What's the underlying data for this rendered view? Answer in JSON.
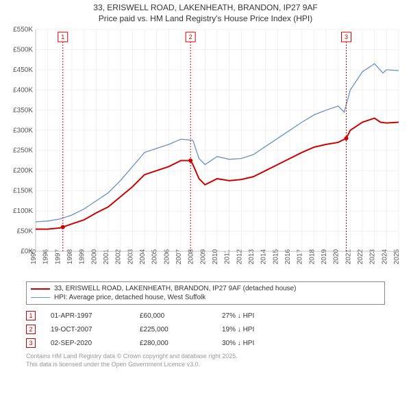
{
  "title": {
    "line1": "33, ERISWELL ROAD, LAKENHEATH, BRANDON, IP27 9AF",
    "line2": "Price paid vs. HM Land Registry's House Price Index (HPI)"
  },
  "chart": {
    "type": "line",
    "background_color": "#ffffff",
    "grid_color": "#f0f0f0",
    "axis_color": "#c0c0c0",
    "x": {
      "start_year": 1995,
      "end_year": 2025,
      "ticks": [
        1995,
        1996,
        1997,
        1998,
        1999,
        2000,
        2001,
        2002,
        2003,
        2004,
        2005,
        2006,
        2007,
        2008,
        2009,
        2010,
        2011,
        2012,
        2013,
        2014,
        2015,
        2016,
        2017,
        2018,
        2019,
        2020,
        2021,
        2022,
        2023,
        2024,
        2025
      ]
    },
    "y": {
      "min": 0,
      "max": 550,
      "step": 50,
      "unit_suffix": "K",
      "unit_prefix": "£",
      "ticks": [
        0,
        50,
        100,
        150,
        200,
        250,
        300,
        350,
        400,
        450,
        500,
        550
      ]
    },
    "series_red": {
      "label": "33, ERISWELL ROAD, LAKENHEATH, BRANDON, IP27 9AF (detached house)",
      "color": "#cc0000",
      "width": 2,
      "data": [
        [
          1995,
          55
        ],
        [
          1996,
          55
        ],
        [
          1997,
          58
        ],
        [
          1997.25,
          60
        ],
        [
          1998,
          68
        ],
        [
          1999,
          78
        ],
        [
          2000,
          95
        ],
        [
          2001,
          110
        ],
        [
          2002,
          135
        ],
        [
          2003,
          160
        ],
        [
          2004,
          190
        ],
        [
          2005,
          200
        ],
        [
          2006,
          210
        ],
        [
          2007,
          225
        ],
        [
          2007.8,
          225
        ],
        [
          2008,
          215
        ],
        [
          2008.5,
          180
        ],
        [
          2009,
          165
        ],
        [
          2010,
          180
        ],
        [
          2011,
          175
        ],
        [
          2012,
          178
        ],
        [
          2013,
          185
        ],
        [
          2014,
          200
        ],
        [
          2015,
          215
        ],
        [
          2016,
          230
        ],
        [
          2017,
          245
        ],
        [
          2018,
          258
        ],
        [
          2019,
          265
        ],
        [
          2020,
          270
        ],
        [
          2020.67,
          280
        ],
        [
          2021,
          300
        ],
        [
          2022,
          320
        ],
        [
          2023,
          330
        ],
        [
          2023.5,
          320
        ],
        [
          2024,
          318
        ],
        [
          2025,
          320
        ]
      ]
    },
    "series_blue": {
      "label": "HPI: Average price, detached house, West Suffolk",
      "color": "#6a8fc4",
      "width": 1.3,
      "data": [
        [
          1995,
          73
        ],
        [
          1996,
          75
        ],
        [
          1997,
          80
        ],
        [
          1998,
          90
        ],
        [
          1999,
          105
        ],
        [
          2000,
          125
        ],
        [
          2001,
          145
        ],
        [
          2002,
          175
        ],
        [
          2003,
          210
        ],
        [
          2004,
          245
        ],
        [
          2005,
          255
        ],
        [
          2006,
          265
        ],
        [
          2007,
          278
        ],
        [
          2008,
          275
        ],
        [
          2008.5,
          230
        ],
        [
          2009,
          215
        ],
        [
          2010,
          235
        ],
        [
          2011,
          228
        ],
        [
          2012,
          230
        ],
        [
          2013,
          240
        ],
        [
          2014,
          260
        ],
        [
          2015,
          280
        ],
        [
          2016,
          300
        ],
        [
          2017,
          320
        ],
        [
          2018,
          338
        ],
        [
          2019,
          350
        ],
        [
          2020,
          360
        ],
        [
          2020.5,
          345
        ],
        [
          2021,
          400
        ],
        [
          2022,
          445
        ],
        [
          2023,
          465
        ],
        [
          2023.7,
          442
        ],
        [
          2024,
          450
        ],
        [
          2025,
          448
        ]
      ]
    },
    "markers": [
      {
        "num": "1",
        "year": 1997.25,
        "value": 60
      },
      {
        "num": "2",
        "year": 2007.8,
        "value": 225
      },
      {
        "num": "3",
        "year": 2020.67,
        "value": 280
      }
    ],
    "marker_color": "#cc0000",
    "label_fontsize": 10
  },
  "legend": {
    "items": [
      {
        "color": "#cc0000",
        "width": 2,
        "text": "33, ERISWELL ROAD, LAKENHEATH, BRANDON, IP27 9AF (detached house)"
      },
      {
        "color": "#6a8fc4",
        "width": 1.3,
        "text": "HPI: Average price, detached house, West Suffolk"
      }
    ]
  },
  "transactions": [
    {
      "num": "1",
      "date": "01-APR-1997",
      "price": "£60,000",
      "pct": "27% ↓ HPI"
    },
    {
      "num": "2",
      "date": "19-OCT-2007",
      "price": "£225,000",
      "pct": "19% ↓ HPI"
    },
    {
      "num": "3",
      "date": "02-SEP-2020",
      "price": "£280,000",
      "pct": "30% ↓ HPI"
    }
  ],
  "footer": {
    "line1": "Contains HM Land Registry data © Crown copyright and database right 2025.",
    "line2": "This data is licensed under the Open Government Licence v3.0."
  }
}
